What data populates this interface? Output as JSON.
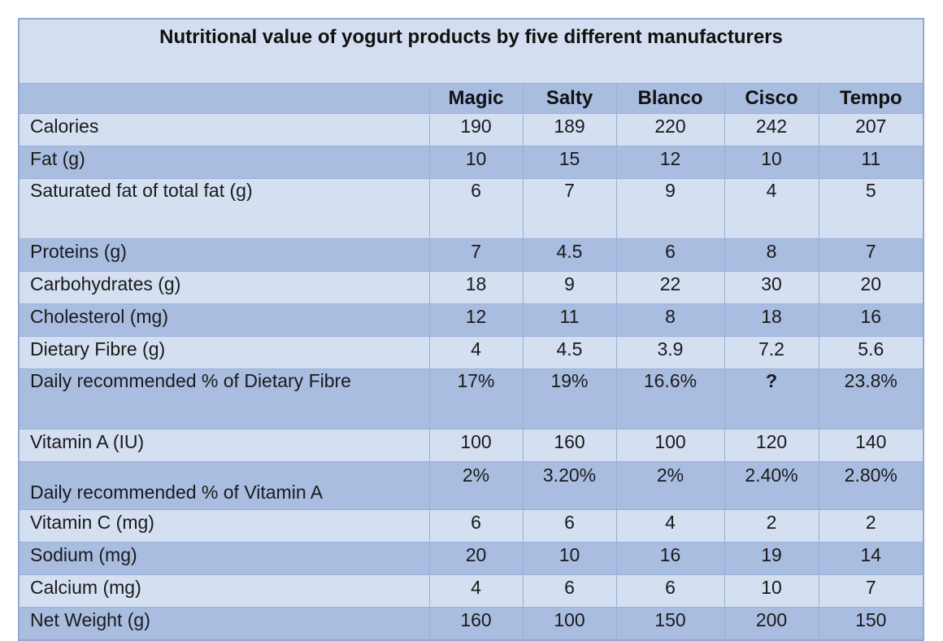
{
  "chart_data": {
    "type": "table",
    "title": "Nutritional value of yogurt products by five different manufacturers",
    "columns": [
      "Magic",
      "Salty",
      "Blanco",
      "Cisco",
      "Tempo"
    ],
    "rows": [
      {
        "label": "Calories",
        "values": [
          "190",
          "189",
          "220",
          "242",
          "207"
        ]
      },
      {
        "label": "Fat (g)",
        "values": [
          "10",
          "15",
          "12",
          "10",
          "11"
        ]
      },
      {
        "label": "Saturated fat of total fat (g)",
        "values": [
          "6",
          "7",
          "9",
          "4",
          "5"
        ]
      },
      {
        "label": "Proteins (g)",
        "values": [
          "7",
          "4.5",
          "6",
          "8",
          "7"
        ]
      },
      {
        "label": "Carbohydrates (g)",
        "values": [
          "18",
          "9",
          "22",
          "30",
          "20"
        ]
      },
      {
        "label": "Cholesterol (mg)",
        "values": [
          "12",
          "11",
          "8",
          "18",
          "16"
        ]
      },
      {
        "label": "Dietary Fibre (g)",
        "values": [
          "4",
          "4.5",
          "3.9",
          "7.2",
          "5.6"
        ]
      },
      {
        "label": "Daily recommended % of Dietary Fibre",
        "values": [
          "17%",
          "19%",
          "16.6%",
          "?",
          "23.8%"
        ]
      },
      {
        "label": "Vitamin A (IU)",
        "values": [
          "100",
          "160",
          "100",
          "120",
          "140"
        ]
      },
      {
        "label": "Daily recommended % of Vitamin A",
        "values": [
          "2%",
          "3.20%",
          "2%",
          "2.40%",
          "2.80%"
        ]
      },
      {
        "label": "Vitamin C (mg)",
        "values": [
          "6",
          "6",
          "4",
          "2",
          "2"
        ]
      },
      {
        "label": "Sodium (mg)",
        "values": [
          "20",
          "10",
          "16",
          "19",
          "14"
        ]
      },
      {
        "label": "Calcium (mg)",
        "values": [
          "4",
          "6",
          "6",
          "10",
          "7"
        ]
      },
      {
        "label": "Net Weight (g)",
        "values": [
          "160",
          "100",
          "150",
          "200",
          "150"
        ]
      }
    ]
  },
  "colors": {
    "title_bg": "#d3def0",
    "light_row": "#d4dff1",
    "dark_row": "#a9bde1",
    "border": "#98b0d8"
  }
}
